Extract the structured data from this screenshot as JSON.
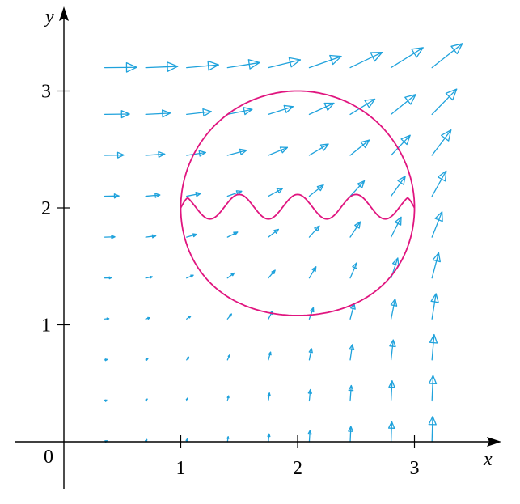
{
  "diagram": {
    "origin_label": "0",
    "x_axis_label": "x",
    "y_axis_label": "y",
    "x_ticks": [
      {
        "value": 1,
        "label": "1"
      },
      {
        "value": 2,
        "label": "2"
      },
      {
        "value": 3,
        "label": "3"
      }
    ],
    "y_ticks": [
      {
        "value": 1,
        "label": "1"
      },
      {
        "value": 2,
        "label": "2"
      },
      {
        "value": 3,
        "label": "3"
      }
    ],
    "x_range": [
      -0.42,
      3.72
    ],
    "y_range": [
      -0.4,
      3.72
    ],
    "vector_field": {
      "grid_x": [
        0.35,
        0.7,
        1.05,
        1.4,
        1.75,
        2.1,
        2.45,
        2.8,
        3.15
      ],
      "grid_y": [
        0,
        0.35,
        0.7,
        1.05,
        1.4,
        1.75,
        2.1,
        2.45,
        2.8,
        3.2
      ],
      "color": "#1fa2dc"
    },
    "curve": {
      "color": "#e0157f",
      "left_endpoint": [
        1,
        2
      ],
      "right_endpoint": [
        3,
        2
      ],
      "upper_arc_center": [
        2,
        2
      ],
      "upper_arc_radius": 1,
      "lower_arc_bottom": [
        2,
        1
      ],
      "wave_amplitude": 0.095,
      "wave_cycles": 4
    }
  }
}
